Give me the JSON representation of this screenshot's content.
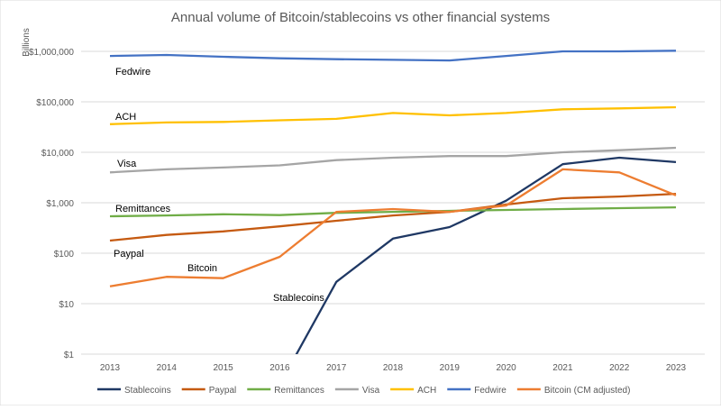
{
  "chart_data": {
    "type": "line",
    "title": "Annual volume of Bitcoin/stablecoins vs other financial systems",
    "ylabel": "Billions",
    "xlabel": "",
    "yscale": "log",
    "ylim": [
      1,
      1000000
    ],
    "grid": true,
    "legend_position": "bottom",
    "x": [
      2013,
      2014,
      2015,
      2016,
      2017,
      2018,
      2019,
      2020,
      2021,
      2022,
      2023
    ],
    "y_ticks": [
      1,
      10,
      100,
      1000,
      10000,
      100000,
      1000000
    ],
    "y_tick_labels": [
      "$1",
      "$10",
      "$100",
      "$1,000",
      "$10,000",
      "$100,000",
      "$1,000,000"
    ],
    "series": [
      {
        "name": "Stablecoins",
        "color": "#1f3864",
        "label": "Stablecoins",
        "values": [
          null,
          null,
          null,
          0.25,
          27,
          195,
          330,
          1100,
          5800,
          7800,
          6400
        ]
      },
      {
        "name": "Paypal",
        "color": "#c55a11",
        "label": "Paypal",
        "values": [
          178,
          230,
          270,
          340,
          440,
          560,
          660,
          920,
          1230,
          1330,
          1500
        ]
      },
      {
        "name": "Remittances",
        "color": "#70ad47",
        "label": "Remittances",
        "values": [
          540,
          560,
          590,
          570,
          630,
          660,
          690,
          720,
          750,
          780,
          810
        ]
      },
      {
        "name": "Visa",
        "color": "#a5a5a5",
        "label": "Visa",
        "values": [
          4000,
          4600,
          5000,
          5500,
          7000,
          7800,
          8400,
          8400,
          10000,
          11000,
          12300
        ]
      },
      {
        "name": "ACH",
        "color": "#ffc000",
        "label": "ACH",
        "values": [
          36000,
          39000,
          40000,
          43000,
          46000,
          60000,
          54000,
          60000,
          71000,
          74000,
          78000
        ]
      },
      {
        "name": "Fedwire",
        "color": "#4472c4",
        "label": "Fedwire",
        "values": [
          810000,
          850000,
          780000,
          730000,
          700000,
          680000,
          660000,
          810000,
          1000000,
          1000000,
          1030000
        ]
      },
      {
        "name": "Bitcoin (CM adjusted)",
        "color": "#ed7d31",
        "label": "Bitcoin",
        "values": [
          22,
          34,
          32,
          85,
          660,
          750,
          660,
          880,
          4600,
          4000,
          1400
        ]
      }
    ]
  }
}
